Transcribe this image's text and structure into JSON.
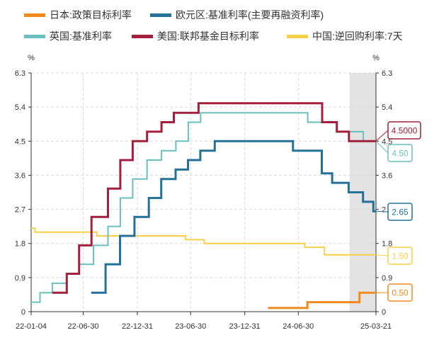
{
  "chart_data": {
    "type": "line",
    "step": true,
    "y_unit_left": "%",
    "y_unit_right": "%",
    "ylim": [
      0,
      6.3
    ],
    "y_ticks": [
      "0",
      "0.9",
      "1.8",
      "2.7",
      "3.6",
      "4.5",
      "5.4",
      "6.3"
    ],
    "x_start": "2022-01-04",
    "x_end": "2025-03-21",
    "x_ticks": [
      {
        "date": "2022-01-04",
        "label": "22-01-04"
      },
      {
        "date": "2022-06-30",
        "label": "22-06-30"
      },
      {
        "date": "2022-12-31",
        "label": "22-12-31"
      },
      {
        "date": "2023-06-30",
        "label": "23-06-30"
      },
      {
        "date": "2023-12-31",
        "label": "23-12-31"
      },
      {
        "date": "2024-06-30",
        "label": "24-06-30"
      },
      {
        "date": "2025-03-21",
        "label": "25-03-21"
      }
    ],
    "shaded_region": [
      "2024-12-21",
      "2025-03-21"
    ],
    "grid": true,
    "legend_position": "top",
    "series": [
      {
        "name": "日本:政策目标利率",
        "color": "#f28a1e",
        "end_label": "0.50",
        "points": [
          [
            "2024-03-19",
            0.1
          ],
          [
            "2024-07-31",
            0.25
          ],
          [
            "2025-01-24",
            0.5
          ],
          [
            "2025-03-21",
            0.5
          ]
        ]
      },
      {
        "name": "欧元区:基准利率(主要再融资利率)",
        "color": "#24719a",
        "end_label": "2.65",
        "points": [
          [
            "2022-07-27",
            0.5
          ],
          [
            "2022-09-14",
            1.25
          ],
          [
            "2022-11-02",
            2.0
          ],
          [
            "2022-12-21",
            2.5
          ],
          [
            "2023-02-08",
            3.0
          ],
          [
            "2023-03-22",
            3.5
          ],
          [
            "2023-05-10",
            3.75
          ],
          [
            "2023-06-21",
            4.0
          ],
          [
            "2023-08-02",
            4.25
          ],
          [
            "2023-09-20",
            4.5
          ],
          [
            "2024-06-12",
            4.25
          ],
          [
            "2024-09-18",
            3.65
          ],
          [
            "2024-10-23",
            3.4
          ],
          [
            "2024-12-18",
            3.15
          ],
          [
            "2025-02-05",
            2.9
          ],
          [
            "2025-03-12",
            2.65
          ],
          [
            "2025-03-21",
            2.65
          ]
        ]
      },
      {
        "name": "英国:基准利率",
        "color": "#6abfc0",
        "end_label": "4.50",
        "points": [
          [
            "2022-01-04",
            0.25
          ],
          [
            "2022-02-03",
            0.5
          ],
          [
            "2022-03-17",
            0.75
          ],
          [
            "2022-05-05",
            1.0
          ],
          [
            "2022-06-16",
            1.25
          ],
          [
            "2022-08-04",
            1.75
          ],
          [
            "2022-09-22",
            2.25
          ],
          [
            "2022-11-03",
            3.0
          ],
          [
            "2022-12-15",
            3.5
          ],
          [
            "2023-02-02",
            4.0
          ],
          [
            "2023-03-23",
            4.25
          ],
          [
            "2023-05-11",
            4.5
          ],
          [
            "2023-06-22",
            5.0
          ],
          [
            "2023-08-03",
            5.25
          ],
          [
            "2024-08-01",
            5.0
          ],
          [
            "2024-11-07",
            4.75
          ],
          [
            "2025-02-06",
            4.5
          ],
          [
            "2025-03-21",
            4.5
          ]
        ]
      },
      {
        "name": "美国:联邦基金目标利率",
        "color": "#a3203c",
        "end_label": "4.5000",
        "points": [
          [
            "2022-03-17",
            0.5
          ],
          [
            "2022-05-05",
            1.0
          ],
          [
            "2022-06-16",
            1.75
          ],
          [
            "2022-07-28",
            2.5
          ],
          [
            "2022-09-22",
            3.25
          ],
          [
            "2022-11-03",
            4.0
          ],
          [
            "2022-12-15",
            4.5
          ],
          [
            "2023-02-02",
            4.75
          ],
          [
            "2023-03-23",
            5.0
          ],
          [
            "2023-05-04",
            5.25
          ],
          [
            "2023-07-27",
            5.5
          ],
          [
            "2024-09-19",
            5.0
          ],
          [
            "2024-11-08",
            4.75
          ],
          [
            "2024-12-19",
            4.5
          ],
          [
            "2025-03-21",
            4.5
          ]
        ]
      },
      {
        "name": "中国:逆回购利率:7天",
        "color": "#f7d048",
        "end_label": "1.50",
        "points": [
          [
            "2022-01-04",
            2.2
          ],
          [
            "2022-01-17",
            2.1
          ],
          [
            "2022-08-15",
            2.0
          ],
          [
            "2023-06-13",
            1.9
          ],
          [
            "2023-08-15",
            1.8
          ],
          [
            "2024-07-22",
            1.7
          ],
          [
            "2024-09-27",
            1.5
          ],
          [
            "2025-03-21",
            1.5
          ]
        ]
      }
    ]
  }
}
